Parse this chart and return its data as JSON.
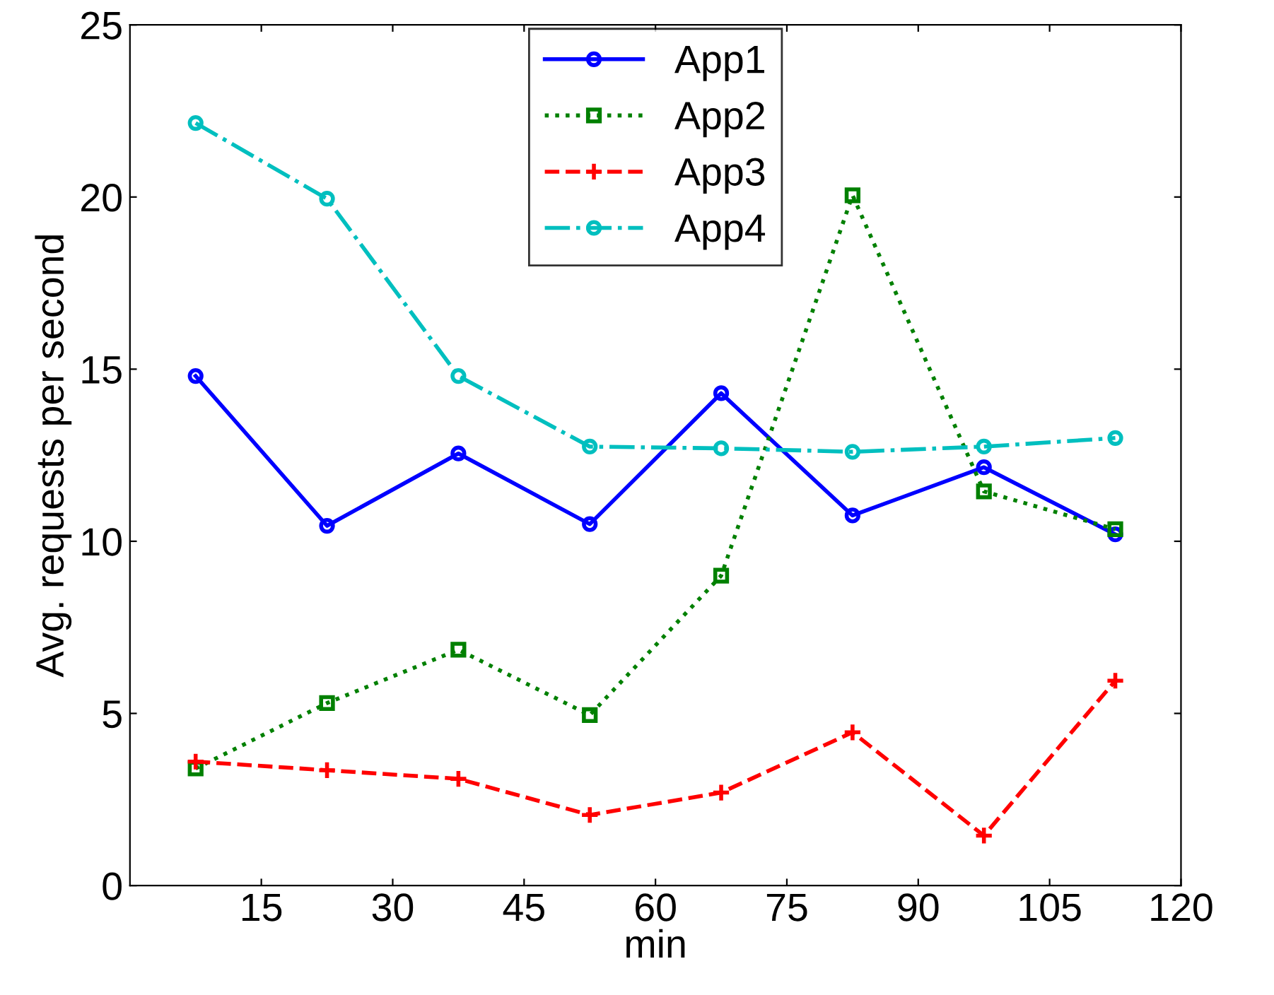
{
  "chart_data": {
    "type": "line",
    "xlabel": "min",
    "ylabel": "Avg. requests per second",
    "x": [
      7.5,
      22.5,
      37.5,
      52.5,
      67.5,
      82.5,
      97.5,
      112.5
    ],
    "series": [
      {
        "name": "App1",
        "color": "#0000ff",
        "marker": "circle",
        "line_style": "solid",
        "values": [
          14.8,
          10.45,
          12.55,
          10.5,
          14.3,
          10.75,
          12.15,
          10.2
        ]
      },
      {
        "name": "App2",
        "color": "#008000",
        "marker": "square",
        "line_style": "dotted",
        "values": [
          3.4,
          5.3,
          6.85,
          4.95,
          9.0,
          20.05,
          11.45,
          10.35
        ]
      },
      {
        "name": "App3",
        "color": "#ff0000",
        "marker": "cross",
        "line_style": "dashed",
        "values": [
          3.6,
          3.35,
          3.1,
          2.05,
          2.7,
          4.45,
          1.45,
          5.95
        ]
      },
      {
        "name": "App4",
        "color": "#00bfbf",
        "marker": "circle",
        "line_style": "dashdot",
        "values": [
          22.15,
          19.95,
          14.8,
          12.75,
          12.7,
          12.6,
          12.75,
          13.0
        ]
      }
    ],
    "xlim": [
      0,
      120
    ],
    "xticks": [
      15,
      30,
      45,
      60,
      75,
      90,
      105,
      120
    ],
    "ylim": [
      0,
      25
    ],
    "yticks": [
      0,
      5,
      10,
      15,
      20,
      25
    ],
    "grid": false,
    "legend": "top"
  }
}
